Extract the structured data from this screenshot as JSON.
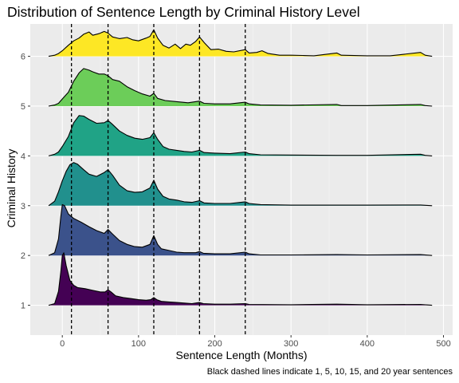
{
  "chart_data": {
    "type": "ridgeline",
    "title": "Distribution of Sentence Length by Criminal History Level",
    "xlabel": "Sentence Length (Months)",
    "ylabel": "Criminal History",
    "caption": "Black dashed lines indicate 1, 5, 10, 15, and 20 year sentences",
    "xlim": [
      -42,
      512
    ],
    "ylim": [
      0.4,
      6.65
    ],
    "x_ticks": [
      0,
      100,
      200,
      300,
      400,
      500
    ],
    "y_ticks": [
      1,
      2,
      3,
      4,
      5,
      6
    ],
    "vlines": [
      12,
      60,
      120,
      180,
      240
    ],
    "grid": true,
    "series": [
      {
        "level": 1,
        "color": "#440154",
        "points": [
          [
            -18,
            0.0
          ],
          [
            -10,
            0.03
          ],
          [
            -5,
            0.25
          ],
          [
            -2,
            0.6
          ],
          [
            0,
            0.9
          ],
          [
            2,
            0.95
          ],
          [
            5,
            0.72
          ],
          [
            10,
            0.45
          ],
          [
            15,
            0.36
          ],
          [
            20,
            0.32
          ],
          [
            30,
            0.3
          ],
          [
            40,
            0.27
          ],
          [
            50,
            0.24
          ],
          [
            56,
            0.24
          ],
          [
            60,
            0.28
          ],
          [
            64,
            0.24
          ],
          [
            70,
            0.17
          ],
          [
            80,
            0.14
          ],
          [
            90,
            0.12
          ],
          [
            100,
            0.1
          ],
          [
            110,
            0.09
          ],
          [
            116,
            0.1
          ],
          [
            120,
            0.14
          ],
          [
            124,
            0.1
          ],
          [
            130,
            0.07
          ],
          [
            140,
            0.06
          ],
          [
            150,
            0.05
          ],
          [
            160,
            0.04
          ],
          [
            170,
            0.03
          ],
          [
            180,
            0.05
          ],
          [
            185,
            0.03
          ],
          [
            200,
            0.02
          ],
          [
            220,
            0.02
          ],
          [
            240,
            0.03
          ],
          [
            245,
            0.015
          ],
          [
            300,
            0.01
          ],
          [
            360,
            0.02
          ],
          [
            400,
            0.01
          ],
          [
            470,
            0.015
          ],
          [
            485,
            0.0
          ]
        ]
      },
      {
        "level": 2,
        "color": "#3b528b",
        "points": [
          [
            -18,
            0.0
          ],
          [
            -10,
            0.05
          ],
          [
            -5,
            0.3
          ],
          [
            -2,
            0.7
          ],
          [
            0,
            0.92
          ],
          [
            3,
            0.9
          ],
          [
            8,
            0.75
          ],
          [
            15,
            0.67
          ],
          [
            25,
            0.6
          ],
          [
            35,
            0.52
          ],
          [
            45,
            0.45
          ],
          [
            55,
            0.4
          ],
          [
            60,
            0.47
          ],
          [
            65,
            0.4
          ],
          [
            75,
            0.27
          ],
          [
            85,
            0.2
          ],
          [
            95,
            0.16
          ],
          [
            105,
            0.15
          ],
          [
            115,
            0.2
          ],
          [
            120,
            0.36
          ],
          [
            125,
            0.2
          ],
          [
            130,
            0.12
          ],
          [
            140,
            0.09
          ],
          [
            150,
            0.06
          ],
          [
            160,
            0.05
          ],
          [
            175,
            0.05
          ],
          [
            180,
            0.07
          ],
          [
            185,
            0.04
          ],
          [
            200,
            0.03
          ],
          [
            220,
            0.03
          ],
          [
            240,
            0.06
          ],
          [
            245,
            0.03
          ],
          [
            260,
            0.01
          ],
          [
            300,
            0.01
          ],
          [
            360,
            0.015
          ],
          [
            400,
            0.01
          ],
          [
            470,
            0.015
          ],
          [
            485,
            0.0
          ]
        ]
      },
      {
        "level": 3,
        "color": "#21908d",
        "points": [
          [
            -18,
            0.0
          ],
          [
            -10,
            0.08
          ],
          [
            -5,
            0.25
          ],
          [
            0,
            0.45
          ],
          [
            5,
            0.62
          ],
          [
            10,
            0.74
          ],
          [
            15,
            0.78
          ],
          [
            20,
            0.75
          ],
          [
            28,
            0.65
          ],
          [
            35,
            0.57
          ],
          [
            45,
            0.53
          ],
          [
            55,
            0.6
          ],
          [
            60,
            0.65
          ],
          [
            66,
            0.55
          ],
          [
            75,
            0.37
          ],
          [
            85,
            0.27
          ],
          [
            95,
            0.24
          ],
          [
            105,
            0.25
          ],
          [
            115,
            0.32
          ],
          [
            120,
            0.46
          ],
          [
            125,
            0.3
          ],
          [
            132,
            0.17
          ],
          [
            140,
            0.12
          ],
          [
            150,
            0.1
          ],
          [
            160,
            0.07
          ],
          [
            170,
            0.06
          ],
          [
            180,
            0.09
          ],
          [
            186,
            0.05
          ],
          [
            200,
            0.04
          ],
          [
            220,
            0.04
          ],
          [
            240,
            0.07
          ],
          [
            245,
            0.04
          ],
          [
            260,
            0.02
          ],
          [
            300,
            0.01
          ],
          [
            360,
            0.01
          ],
          [
            400,
            0.01
          ],
          [
            470,
            0.012
          ],
          [
            485,
            0.0
          ]
        ]
      },
      {
        "level": 4,
        "color": "#20a386",
        "points": [
          [
            -18,
            0.0
          ],
          [
            -10,
            0.03
          ],
          [
            -5,
            0.07
          ],
          [
            0,
            0.17
          ],
          [
            8,
            0.35
          ],
          [
            15,
            0.6
          ],
          [
            22,
            0.73
          ],
          [
            28,
            0.72
          ],
          [
            35,
            0.66
          ],
          [
            45,
            0.59
          ],
          [
            55,
            0.6
          ],
          [
            60,
            0.64
          ],
          [
            65,
            0.58
          ],
          [
            75,
            0.45
          ],
          [
            85,
            0.37
          ],
          [
            95,
            0.32
          ],
          [
            105,
            0.3
          ],
          [
            115,
            0.33
          ],
          [
            120,
            0.42
          ],
          [
            125,
            0.3
          ],
          [
            132,
            0.17
          ],
          [
            140,
            0.12
          ],
          [
            150,
            0.1
          ],
          [
            160,
            0.08
          ],
          [
            170,
            0.07
          ],
          [
            180,
            0.1
          ],
          [
            186,
            0.06
          ],
          [
            200,
            0.05
          ],
          [
            220,
            0.04
          ],
          [
            240,
            0.07
          ],
          [
            245,
            0.04
          ],
          [
            260,
            0.02
          ],
          [
            300,
            0.015
          ],
          [
            360,
            0.01
          ],
          [
            400,
            0.01
          ],
          [
            470,
            0.03
          ],
          [
            476,
            0.01
          ],
          [
            485,
            0.0
          ]
        ]
      },
      {
        "level": 5,
        "color": "#6ccd59",
        "points": [
          [
            -18,
            0.0
          ],
          [
            -10,
            0.02
          ],
          [
            -5,
            0.05
          ],
          [
            0,
            0.13
          ],
          [
            8,
            0.25
          ],
          [
            15,
            0.45
          ],
          [
            22,
            0.6
          ],
          [
            28,
            0.68
          ],
          [
            35,
            0.65
          ],
          [
            40,
            0.62
          ],
          [
            48,
            0.58
          ],
          [
            55,
            0.58
          ],
          [
            60,
            0.55
          ],
          [
            66,
            0.48
          ],
          [
            75,
            0.45
          ],
          [
            85,
            0.35
          ],
          [
            95,
            0.28
          ],
          [
            105,
            0.22
          ],
          [
            115,
            0.18
          ],
          [
            120,
            0.23
          ],
          [
            125,
            0.14
          ],
          [
            135,
            0.1
          ],
          [
            150,
            0.08
          ],
          [
            165,
            0.06
          ],
          [
            180,
            0.09
          ],
          [
            186,
            0.05
          ],
          [
            200,
            0.04
          ],
          [
            220,
            0.04
          ],
          [
            240,
            0.07
          ],
          [
            245,
            0.04
          ],
          [
            260,
            0.02
          ],
          [
            300,
            0.015
          ],
          [
            360,
            0.03
          ],
          [
            366,
            0.01
          ],
          [
            400,
            0.01
          ],
          [
            470,
            0.03
          ],
          [
            476,
            0.01
          ],
          [
            485,
            0.0
          ]
        ]
      },
      {
        "level": 6,
        "color": "#fde725",
        "points": [
          [
            -18,
            0.0
          ],
          [
            -10,
            0.02
          ],
          [
            -5,
            0.05
          ],
          [
            0,
            0.1
          ],
          [
            8,
            0.2
          ],
          [
            15,
            0.28
          ],
          [
            22,
            0.33
          ],
          [
            28,
            0.4
          ],
          [
            35,
            0.44
          ],
          [
            40,
            0.38
          ],
          [
            48,
            0.41
          ],
          [
            55,
            0.45
          ],
          [
            60,
            0.42
          ],
          [
            66,
            0.35
          ],
          [
            75,
            0.32
          ],
          [
            85,
            0.34
          ],
          [
            92,
            0.3
          ],
          [
            100,
            0.28
          ],
          [
            110,
            0.33
          ],
          [
            115,
            0.36
          ],
          [
            120,
            0.48
          ],
          [
            125,
            0.33
          ],
          [
            132,
            0.2
          ],
          [
            140,
            0.15
          ],
          [
            148,
            0.22
          ],
          [
            155,
            0.14
          ],
          [
            162,
            0.22
          ],
          [
            168,
            0.2
          ],
          [
            175,
            0.27
          ],
          [
            180,
            0.35
          ],
          [
            186,
            0.25
          ],
          [
            195,
            0.12
          ],
          [
            205,
            0.13
          ],
          [
            215,
            0.09
          ],
          [
            225,
            0.08
          ],
          [
            240,
            0.12
          ],
          [
            245,
            0.06
          ],
          [
            255,
            0.07
          ],
          [
            262,
            0.1
          ],
          [
            270,
            0.05
          ],
          [
            285,
            0.02
          ],
          [
            300,
            0.02
          ],
          [
            315,
            0.015
          ],
          [
            330,
            0.01
          ],
          [
            360,
            0.06
          ],
          [
            366,
            0.02
          ],
          [
            400,
            0.01
          ],
          [
            430,
            0.01
          ],
          [
            470,
            0.07
          ],
          [
            476,
            0.02
          ],
          [
            485,
            0.0
          ]
        ]
      }
    ]
  }
}
